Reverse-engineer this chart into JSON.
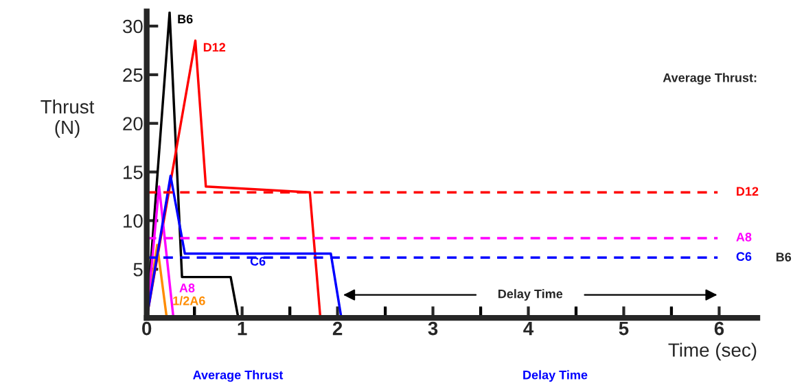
{
  "chart_data": {
    "type": "line",
    "xlabel": "Time (sec)",
    "ylabel": "Thrust\n(N)",
    "xlim": [
      0,
      6.4
    ],
    "xticks": [
      0,
      {
        "value": 0.5,
        "label": null
      },
      1,
      {
        "value": 1.5,
        "label": null
      },
      2,
      {
        "value": 2.5,
        "label": null
      },
      3,
      {
        "value": 3.5,
        "label": null
      },
      4,
      {
        "value": 4.5,
        "label": null
      },
      5,
      {
        "value": 5.5,
        "label": null
      },
      6
    ],
    "ylim": [
      0,
      31.5
    ],
    "yticks": [
      5,
      10,
      15,
      20,
      25,
      30
    ],
    "grid": false,
    "legend": false,
    "line_style": "solid",
    "marker": "none",
    "series": [
      {
        "name": "B6",
        "color": "#000000",
        "x": [
          0,
          0.24,
          0.37,
          0.88,
          0.96
        ],
        "values": [
          0,
          31.4,
          4.2,
          4.2,
          0
        ]
      },
      {
        "name": "D12",
        "color": "#ff0000",
        "x": [
          0,
          0.51,
          0.62,
          1.71,
          1.82
        ],
        "values": [
          0,
          28.5,
          13.5,
          12.9,
          0
        ]
      },
      {
        "name": "1/2A6",
        "color": "#ff8c00",
        "x": [
          0,
          0.11,
          0.21
        ],
        "values": [
          0,
          7.5,
          0
        ]
      },
      {
        "name": "A8",
        "color": "#ff00ff",
        "x": [
          0,
          0.13,
          0.28
        ],
        "values": [
          0,
          13.5,
          0
        ]
      },
      {
        "name": "C6",
        "color": "#0000ff",
        "x": [
          0,
          0.25,
          0.4,
          1.93,
          2.04,
          6.0
        ],
        "values": [
          0,
          14.6,
          6.6,
          6.6,
          0,
          0
        ]
      }
    ],
    "ref_lines": [
      {
        "axis": "y",
        "value": 12.9,
        "label": "D12",
        "color": "#ff0000",
        "line_style": "dashed"
      },
      {
        "axis": "y",
        "value": 8.2,
        "label": "A8",
        "color": "#ff00ff",
        "line_style": "dashed"
      },
      {
        "axis": "y",
        "value": 6.2,
        "label": "C6",
        "color": "#0000ff",
        "line_style": "dashed"
      }
    ],
    "annotations": [
      "Average Thrust:",
      "B6",
      "Average Thrust",
      "Delay Time",
      "Delay Time"
    ]
  }
}
